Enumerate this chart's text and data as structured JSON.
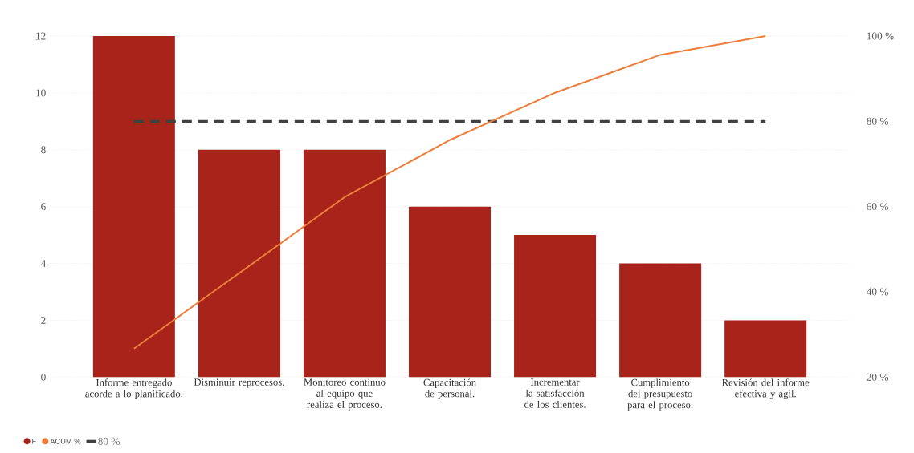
{
  "chart_data": {
    "type": "bar",
    "categories": [
      "Informe entregado acorde a lo planificado.",
      "Disminuir reprocesos.",
      "Monitoreo continuo al equipo que realiza el proceso.",
      "Capacitación de personal.",
      "Incrementar la satisfacción de los clientes.",
      "Cumplimiento del presupuesto para el proceso.",
      "Revisión del informe efectiva y ágil."
    ],
    "series": [
      {
        "name": "F",
        "color": "#a8231a",
        "values": [
          12,
          8,
          8,
          6,
          5,
          4,
          2
        ]
      },
      {
        "name": "ACUM %",
        "type": "line",
        "axis": "y2",
        "color": "#ed7d3b",
        "values": [
          26.7,
          44.4,
          62.2,
          75.6,
          86.7,
          95.6,
          100
        ]
      }
    ],
    "ylim": [
      0,
      12
    ],
    "yticks": [
      0,
      2,
      4,
      6,
      8,
      10,
      12
    ],
    "y2lim": [
      20,
      100
    ],
    "y2ticks": [
      {
        "value": 20,
        "label": "20 %"
      },
      {
        "value": 40,
        "label": "40 %"
      },
      {
        "value": 60,
        "label": "60 %"
      },
      {
        "value": 80,
        "label": "80 %"
      },
      {
        "value": 100,
        "label": "100 %"
      }
    ],
    "ref_lines": [
      {
        "axis": "y2",
        "value": 80,
        "label": "80 %",
        "color": "#404040",
        "line_style": "dashed"
      }
    ],
    "grid": "y",
    "legend": "bottom left",
    "marker": "none",
    "line_style": "solid"
  }
}
